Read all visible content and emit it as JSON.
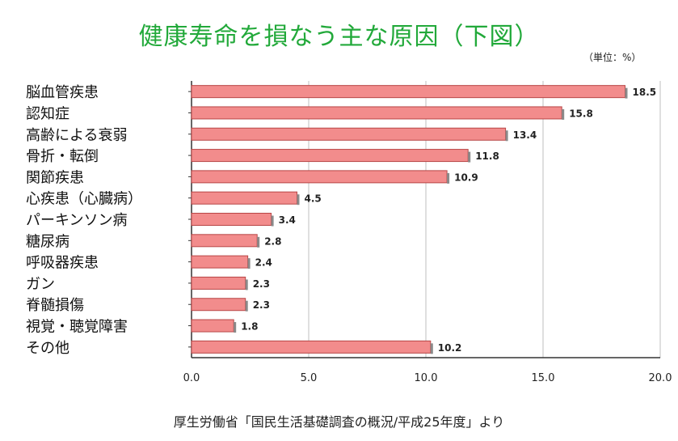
{
  "title": "健康寿命を損なう主な原因（下図）",
  "unit_note": "（単位：%）",
  "source_note": "厚生労働省「国民生活基礎調査の概況/平成25年度」より",
  "colors": {
    "bar": "#f28c8c",
    "bar_stroke": "#b84646",
    "grid": "#bfbfbf",
    "title": "#22a93a"
  },
  "chart_data": {
    "type": "bar",
    "orientation": "horizontal",
    "categories": [
      "脳血管疾患",
      "認知症",
      "高齢による衰弱",
      "骨折・転倒",
      "関節疾患",
      "心疾患（心臓病）",
      "パーキンソン病",
      "糖尿病",
      "呼吸器疾患",
      "ガン",
      "脊髄損傷",
      "視覚・聴覚障害",
      "その他"
    ],
    "values": [
      18.5,
      15.8,
      13.4,
      11.8,
      10.9,
      4.5,
      3.4,
      2.8,
      2.4,
      2.3,
      2.3,
      1.8,
      10.2
    ],
    "xlim": [
      0,
      20
    ],
    "xticks": [
      "0.0",
      "5.0",
      "10.0",
      "15.0",
      "20.0"
    ],
    "grid": true
  }
}
